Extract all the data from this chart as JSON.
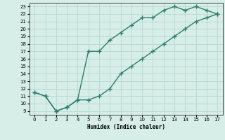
{
  "upper_x": [
    0,
    1,
    2,
    3,
    4,
    5,
    6,
    7,
    8,
    9,
    10,
    11,
    12,
    13,
    14,
    15,
    16,
    17
  ],
  "upper_y": [
    11.5,
    11.0,
    9.0,
    9.5,
    10.5,
    17.0,
    17.0,
    18.5,
    19.5,
    20.5,
    21.5,
    21.5,
    22.5,
    23.0,
    22.5,
    23.0,
    22.5,
    22.0
  ],
  "lower_x": [
    0,
    1,
    2,
    3,
    4,
    5,
    6,
    7,
    8,
    9,
    10,
    11,
    12,
    13,
    14,
    15,
    16,
    17
  ],
  "lower_y": [
    11.5,
    11.0,
    9.0,
    9.5,
    10.5,
    10.5,
    11.0,
    12.0,
    14.0,
    15.0,
    16.0,
    17.0,
    18.0,
    19.0,
    20.0,
    21.0,
    21.5,
    22.0
  ],
  "line_color": "#2e7d6e",
  "bg_color": "#d6ede8",
  "grid_color": "#b8d8d0",
  "xlabel": "Humidex (Indice chaleur)",
  "xlim": [
    -0.5,
    17.5
  ],
  "ylim": [
    8.5,
    23.5
  ],
  "xticks": [
    0,
    1,
    2,
    3,
    4,
    5,
    6,
    7,
    8,
    9,
    10,
    11,
    12,
    13,
    14,
    15,
    16,
    17
  ],
  "yticks": [
    9,
    10,
    11,
    12,
    13,
    14,
    15,
    16,
    17,
    18,
    19,
    20,
    21,
    22,
    23
  ],
  "marker": "+",
  "marker_size": 4,
  "linewidth": 1.0
}
